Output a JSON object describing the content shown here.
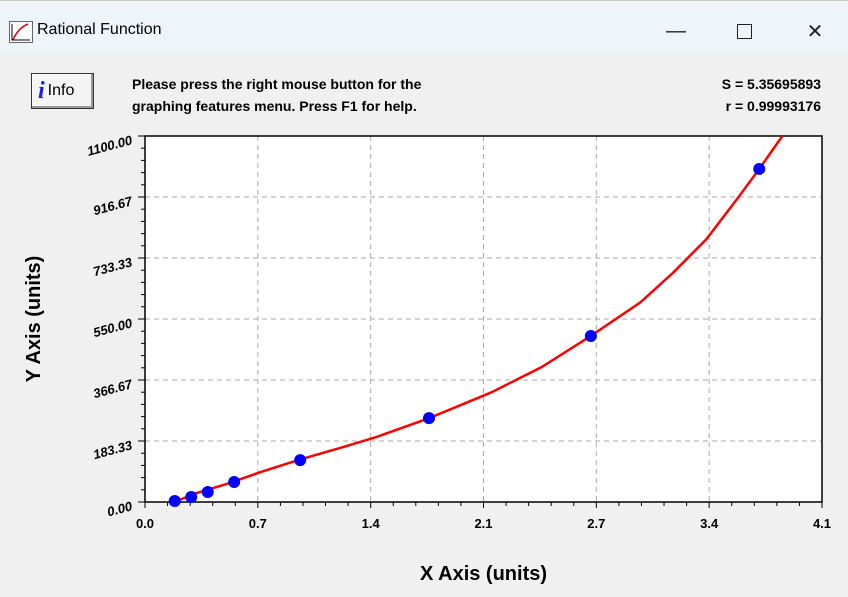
{
  "window": {
    "title": "Rational Function",
    "app_icon": "graph-app-icon",
    "minimize_icon": "minimize-icon",
    "maximize_icon": "maximize-icon",
    "close_icon": "close-icon"
  },
  "toolbar": {
    "info_label": "Info",
    "info_icon": "info-icon",
    "message_line1": "Please press the right mouse button for the",
    "message_line2": "graphing features menu.  Press F1 for help."
  },
  "stats": {
    "s": "S = 5.35695893",
    "r": "r = 0.99993176"
  },
  "chart_data": {
    "type": "scatter",
    "xlabel": "X Axis (units)",
    "ylabel": "Y Axis (units)",
    "xlim": [
      0.0,
      4.1
    ],
    "ylim": [
      0.0,
      1100.0
    ],
    "x_ticks": [
      "0.0",
      "0.7",
      "1.4",
      "2.1",
      "2.7",
      "3.4",
      "4.1"
    ],
    "y_ticks": [
      "0.00",
      "183.33",
      "366.67",
      "550.00",
      "733.33",
      "916.67",
      "1100.00"
    ],
    "grid": true,
    "points": {
      "x": [
        0.18,
        0.28,
        0.38,
        0.54,
        0.94,
        1.72,
        2.7,
        3.72
      ],
      "y": [
        3,
        15,
        30,
        60,
        126,
        252,
        499,
        1001
      ],
      "color": "#0000ff"
    },
    "fit_curve": {
      "x": [
        0.18,
        0.3,
        0.5,
        0.7,
        0.94,
        1.2,
        1.4,
        1.72,
        2.1,
        2.4,
        2.7,
        3.0,
        3.2,
        3.4,
        3.6,
        3.72,
        3.86
      ],
      "y": [
        0,
        25,
        55,
        90,
        128,
        165,
        195,
        252,
        330,
        405,
        499,
        600,
        690,
        790,
        920,
        1001,
        1100
      ],
      "color": "#ff0000"
    }
  }
}
